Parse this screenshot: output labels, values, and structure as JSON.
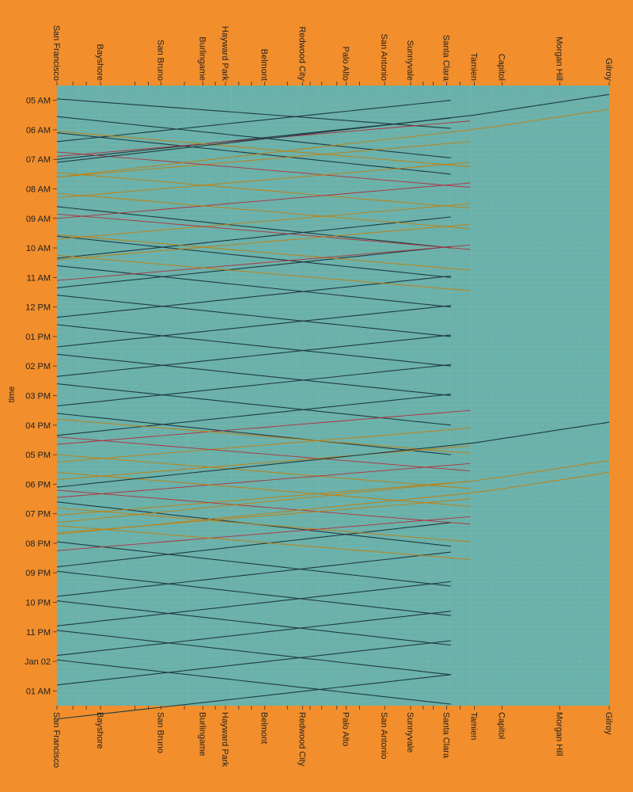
{
  "chart_data": {
    "type": "line",
    "title": "",
    "xlabel": "",
    "ylabel": "time",
    "x_axis": "station",
    "y_axis_ticks": [
      "05 AM",
      "06 AM",
      "07 AM",
      "08 AM",
      "09 AM",
      "10 AM",
      "11 AM",
      "12 PM",
      "01 PM",
      "02 PM",
      "03 PM",
      "04 PM",
      "05 PM",
      "06 PM",
      "07 PM",
      "08 PM",
      "09 PM",
      "10 PM",
      "11 PM",
      "Jan 02",
      "01 AM"
    ],
    "ylim": [
      "04:30",
      "01:30 (+1 day)"
    ],
    "stations": [
      {
        "name": "San Francisco",
        "mile": 0
      },
      {
        "name": "Bayshore",
        "mile": 5.2
      },
      {
        "name": "San Bruno",
        "mile": 12.4
      },
      {
        "name": "Burlingame",
        "mile": 17.4
      },
      {
        "name": "Hayward Park",
        "mile": 20.1
      },
      {
        "name": "Belmont",
        "mile": 24.8
      },
      {
        "name": "Redwood City",
        "mile": 29.3
      },
      {
        "name": "Palo Alto",
        "mile": 34.5
      },
      {
        "name": "San Antonio",
        "mile": 39.1
      },
      {
        "name": "Sunnyvale",
        "mile": 42.2
      },
      {
        "name": "Santa Clara",
        "mile": 46.5
      },
      {
        "name": "Tamien",
        "mile": 49.8
      },
      {
        "name": "Capitol",
        "mile": 53.1
      },
      {
        "name": "Morgan Hill",
        "mile": 60.0
      },
      {
        "name": "Gilroy",
        "mile": 65.9
      }
    ],
    "minor_ticks_miles": [
      1.9,
      3.5,
      9.3,
      10.9,
      15.2,
      18.9,
      21.7,
      23.2,
      27.5,
      30.2,
      31.6,
      33.4,
      36.1,
      43.7,
      44.9,
      48.1
    ],
    "service_colors": {
      "Local": "#1f3b44",
      "Limited": "#c37e0a",
      "Baby Bullet": "#b1303d"
    },
    "grid": true,
    "background": "#6ab1ab",
    "page_background": "#f28e2b"
  }
}
